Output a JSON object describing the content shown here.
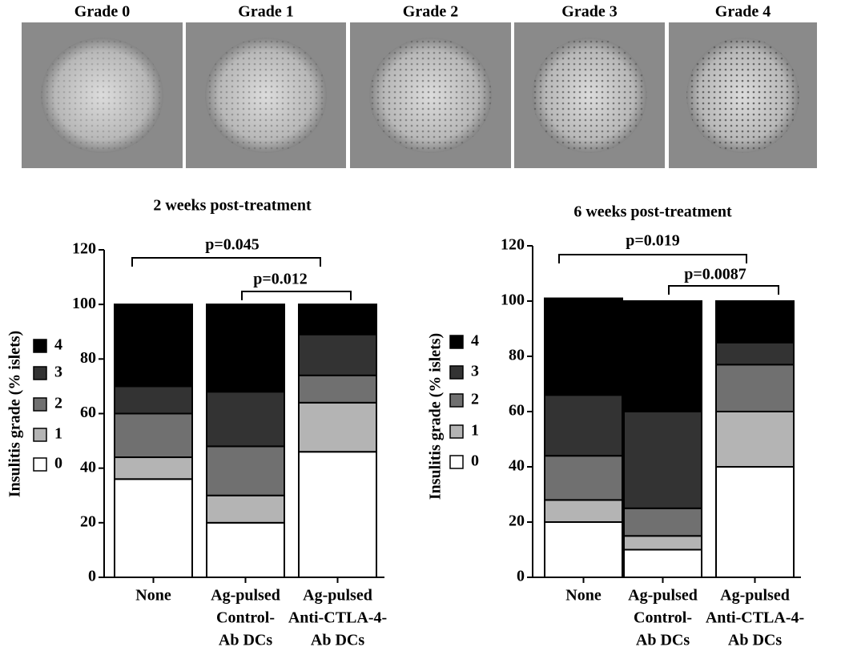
{
  "images": [
    {
      "label": "Grade 0"
    },
    {
      "label": "Grade 1"
    },
    {
      "label": "Grade 2"
    },
    {
      "label": "Grade 3"
    },
    {
      "label": "Grade 4"
    }
  ],
  "chart_data": [
    {
      "type": "stacked-bar",
      "title": "2 weeks post-treatment",
      "y_label": "Insulitis grade (% islets)",
      "categories": [
        [
          "None"
        ],
        [
          "Ag-pulsed",
          "Control-",
          "Ab DCs"
        ],
        [
          "Ag-pulsed",
          "Anti-CTLA-4-",
          "Ab DCs"
        ]
      ],
      "series": [
        {
          "name": "0",
          "color": "#ffffff",
          "values": [
            36,
            20,
            46
          ]
        },
        {
          "name": "1",
          "color": "#b4b4b4",
          "values": [
            8,
            10,
            18
          ]
        },
        {
          "name": "2",
          "color": "#707070",
          "values": [
            16,
            18,
            10
          ]
        },
        {
          "name": "3",
          "color": "#333333",
          "values": [
            10,
            20,
            15
          ]
        },
        {
          "name": "4",
          "color": "#000000",
          "values": [
            30,
            32,
            11
          ]
        }
      ],
      "ylim": [
        0,
        120
      ],
      "yticks": [
        0,
        20,
        40,
        60,
        80,
        100,
        120
      ],
      "annotations": [
        "p=0.045",
        "p=0.012"
      ]
    },
    {
      "type": "stacked-bar",
      "title": "6 weeks post-treatment",
      "y_label": "Insulitis grade (% islets)",
      "categories": [
        [
          "None"
        ],
        [
          "Ag-pulsed",
          "Control-",
          "Ab DCs"
        ],
        [
          "Ag-pulsed",
          "Anti-CTLA-4-",
          "Ab DCs"
        ]
      ],
      "series": [
        {
          "name": "0",
          "color": "#ffffff",
          "values": [
            20,
            10,
            40
          ]
        },
        {
          "name": "1",
          "color": "#b4b4b4",
          "values": [
            8,
            5,
            20
          ]
        },
        {
          "name": "2",
          "color": "#707070",
          "values": [
            16,
            10,
            17
          ]
        },
        {
          "name": "3",
          "color": "#333333",
          "values": [
            22,
            35,
            8
          ]
        },
        {
          "name": "4",
          "color": "#000000",
          "values": [
            35,
            40,
            15
          ]
        }
      ],
      "ylim": [
        0,
        120
      ],
      "yticks": [
        0,
        20,
        40,
        60,
        80,
        100,
        120
      ],
      "annotations": [
        "p=0.019",
        "p=0.0087"
      ]
    }
  ]
}
